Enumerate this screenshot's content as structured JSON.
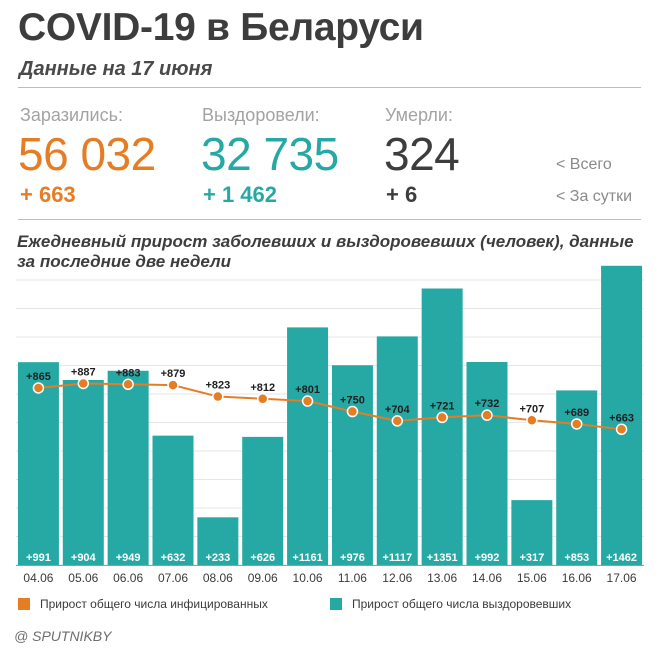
{
  "header": {
    "title": "COVID-19 в Беларуси",
    "subtitle": "Данные на 17 июня"
  },
  "stats": {
    "infected": {
      "label": "Заразились:",
      "total": "56 032",
      "delta": "+ 663",
      "color": "#e57d24"
    },
    "recovered": {
      "label": "Выздоровели:",
      "total": "32 735",
      "delta": "+ 1 462",
      "color": "#26a9a5"
    },
    "died": {
      "label": "Умерли:",
      "total": "324",
      "delta": "+ 6",
      "color": "#3d3d3d"
    },
    "hints": {
      "total": "<  Всего",
      "daily": "<  За сутки"
    }
  },
  "chart_title": "Ежедневный прирост заболевших и выздоровевших (человек), данные за последние две недели",
  "legend": {
    "infected": "Прирост общего числа инфицированных",
    "recovered": "Прирост общего числа выздоровевших"
  },
  "footer": "@ SPUTNIKBY",
  "chart_data": {
    "type": "bar",
    "categories": [
      "04.06",
      "05.06",
      "06.06",
      "07.06",
      "08.06",
      "09.06",
      "10.06",
      "11.06",
      "12.06",
      "13.06",
      "14.06",
      "15.06",
      "16.06",
      "17.06"
    ],
    "series": [
      {
        "name": "Прирост общего числа выздоровевших",
        "type": "bar",
        "color": "#26a9a5",
        "values": [
          991,
          904,
          949,
          632,
          233,
          626,
          1161,
          976,
          1117,
          1351,
          992,
          317,
          853,
          1462
        ],
        "labels": [
          "+991",
          "+904",
          "+949",
          "+632",
          "+233",
          "+626",
          "+1161",
          "+976",
          "+1117",
          "+1351",
          "+992",
          "+317",
          "+853",
          "+1462"
        ]
      },
      {
        "name": "Прирост общего числа инфицированных",
        "type": "line",
        "color": "#e57d24",
        "values": [
          865,
          887,
          883,
          879,
          823,
          812,
          801,
          750,
          704,
          721,
          732,
          707,
          689,
          663
        ],
        "labels": [
          "+865",
          "+887",
          "+883",
          "+879",
          "+823",
          "+812",
          "+801",
          "+750",
          "+704",
          "+721",
          "+732",
          "+707",
          "+689",
          "+663"
        ]
      }
    ],
    "ylim": [
      0,
      1500
    ],
    "grid": true
  }
}
